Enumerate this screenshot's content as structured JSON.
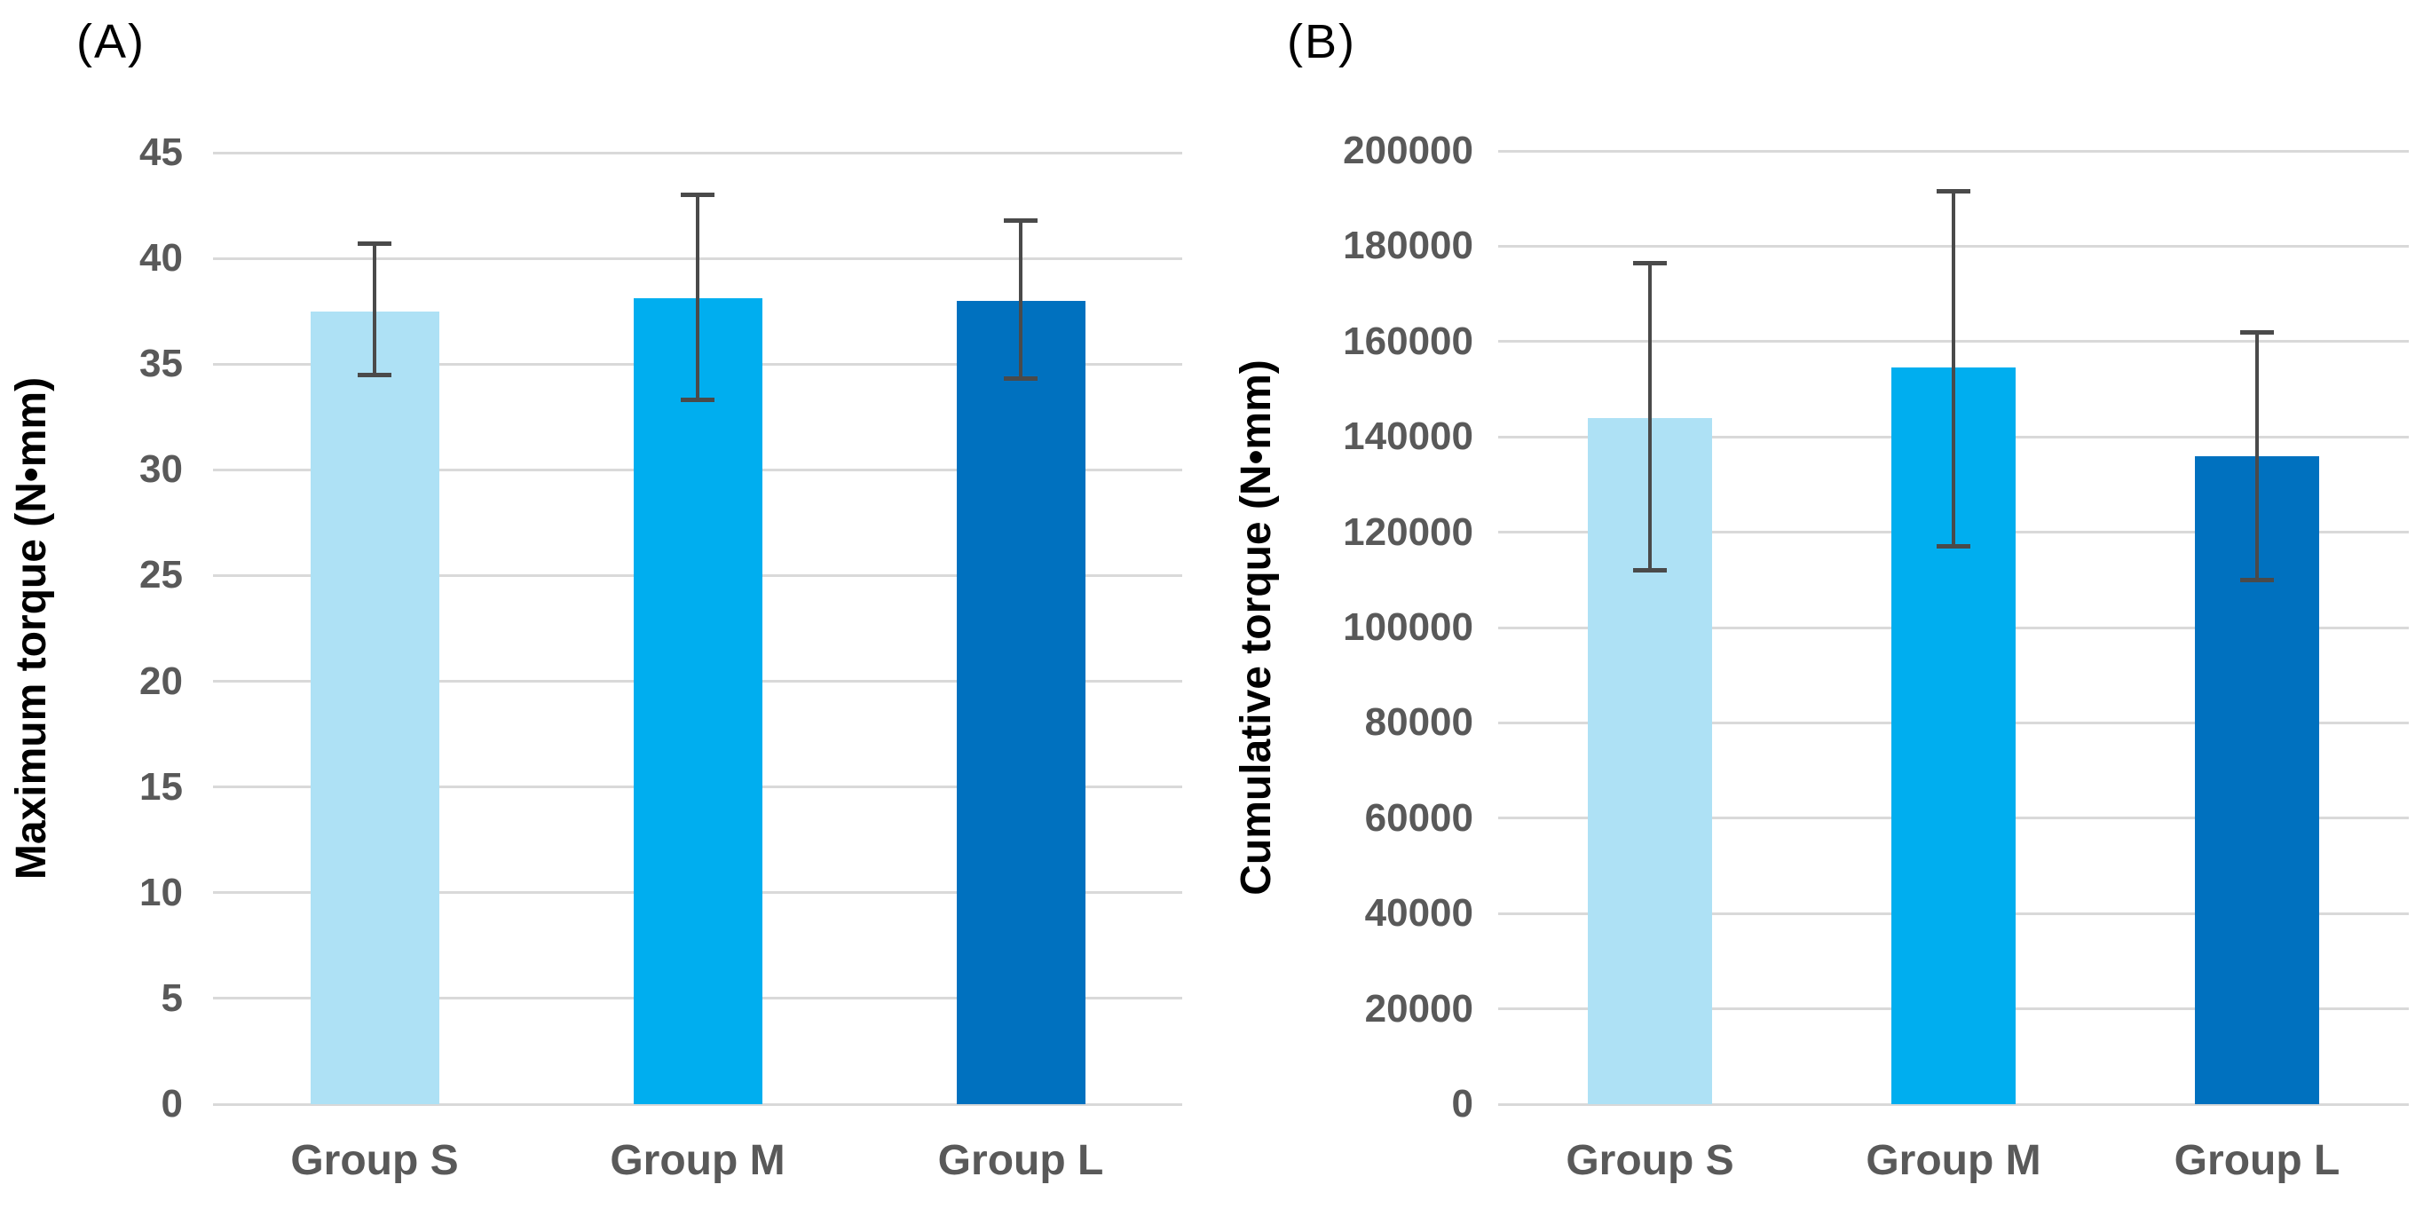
{
  "styles": {
    "background": "#FFFFFF",
    "grid_color": "#D9D9D9",
    "tick_text_color": "#595959",
    "category_text_color": "#595959",
    "axis_title_color": "#000000",
    "error_bar_color": "#4A4A4A",
    "bar_color_light": "#AEE1F5",
    "bar_color_medium": "#00AEEF",
    "bar_color_dark": "#0071BF"
  },
  "chart_data": [
    {
      "type": "bar",
      "panel_label": "(A)",
      "title": "",
      "ylabel": "Maximum torque (N•mm)",
      "xlabel": "",
      "categories": [
        "Group S",
        "Group M",
        "Group L"
      ],
      "values": [
        37.5,
        38.1,
        38.0
      ],
      "error_upper": [
        40.7,
        43.0,
        41.8
      ],
      "error_lower": [
        34.5,
        33.3,
        34.3
      ],
      "ylim": [
        0,
        45
      ],
      "ytick_step": 5,
      "yticks": [
        "0",
        "5",
        "10",
        "15",
        "20",
        "25",
        "30",
        "35",
        "40",
        "45"
      ],
      "bar_colors": [
        "#AEE1F5",
        "#00AEEF",
        "#0071BF"
      ],
      "grid": true,
      "legend": null
    },
    {
      "type": "bar",
      "panel_label": "(B)",
      "title": "",
      "ylabel": "Cumulative torque (N•mm)",
      "xlabel": "",
      "categories": [
        "Group S",
        "Group M",
        "Group L"
      ],
      "values": [
        144000,
        154500,
        136000
      ],
      "error_upper": [
        176500,
        191500,
        162000
      ],
      "error_lower": [
        112000,
        117000,
        110000
      ],
      "ylim": [
        0,
        200000
      ],
      "ytick_step": 20000,
      "yticks": [
        "0",
        "20000",
        "40000",
        "60000",
        "80000",
        "100000",
        "120000",
        "140000",
        "160000",
        "180000",
        "200000"
      ],
      "bar_colors": [
        "#AEE1F5",
        "#00AEEF",
        "#0071BF"
      ],
      "grid": true,
      "legend": null
    }
  ]
}
